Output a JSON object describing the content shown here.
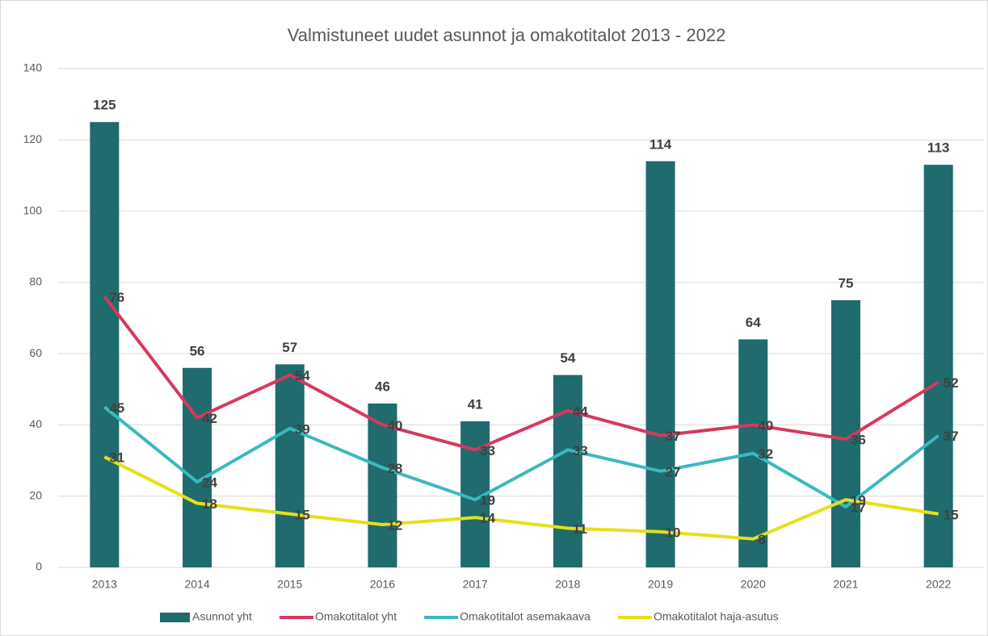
{
  "chart_data": {
    "type": "combo",
    "title": "Valmistuneet uudet asunnot ja omakotitalot 2013 - 2022",
    "categories": [
      "2013",
      "2014",
      "2015",
      "2016",
      "2017",
      "2018",
      "2019",
      "2020",
      "2021",
      "2022"
    ],
    "series": [
      {
        "name": "Asunnot yht",
        "type": "bar",
        "color": "#1f6b6e",
        "values": [
          125,
          56,
          57,
          46,
          41,
          54,
          114,
          64,
          75,
          113
        ]
      },
      {
        "name": "Omakotitalot yht",
        "type": "line",
        "color": "#d6395e",
        "values": [
          76,
          42,
          54,
          40,
          33,
          44,
          37,
          40,
          36,
          52
        ]
      },
      {
        "name": "Omakotitalot asemakaava",
        "type": "line",
        "color": "#3bb8c0",
        "values": [
          45,
          24,
          39,
          28,
          19,
          33,
          27,
          32,
          17,
          37
        ]
      },
      {
        "name": "Omakotitalot haja-asutus",
        "type": "line",
        "color": "#e6e019",
        "values": [
          31,
          18,
          15,
          12,
          14,
          11,
          10,
          8,
          19,
          15
        ]
      }
    ],
    "ylim": [
      0,
      140
    ],
    "yticks": [
      0,
      20,
      40,
      60,
      80,
      100,
      120,
      140
    ],
    "grid": true,
    "legend": "bottom"
  }
}
